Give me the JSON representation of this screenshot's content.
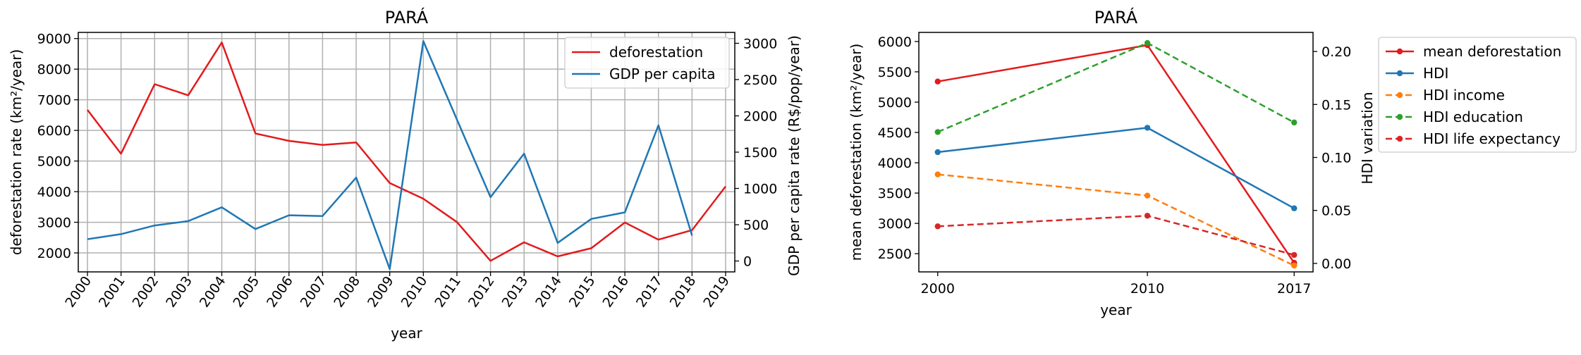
{
  "chart_data": [
    {
      "type": "line",
      "title": "PARÁ",
      "xlabel": "year",
      "ylabel": "deforestation rate (km²/year)",
      "y2label": "GDP per capita rate (R$/pop/year)",
      "x": [
        "2000",
        "2001",
        "2002",
        "2003",
        "2004",
        "2005",
        "2006",
        "2007",
        "2008",
        "2009",
        "2010",
        "2011",
        "2012",
        "2013",
        "2014",
        "2015",
        "2016",
        "2017",
        "2018",
        "2019"
      ],
      "ylim": [
        1380,
        9200
      ],
      "yticks": [
        2000,
        3000,
        4000,
        5000,
        6000,
        7000,
        8000,
        9000
      ],
      "y2lim": [
        -150,
        3150
      ],
      "y2ticks": [
        0,
        500,
        1000,
        1500,
        2000,
        2500,
        3000
      ],
      "grid": true,
      "legend_position": "top-right",
      "series": [
        {
          "name": "deforestation",
          "axis": "left",
          "color": "#e31a1c",
          "values": [
            6671,
            5237,
            7510,
            7145,
            8870,
            5899,
            5659,
            5526,
            5607,
            4281,
            3770,
            3008,
            1741,
            2346,
            1887,
            2153,
            2992,
            2433,
            2744,
            4172
          ]
        },
        {
          "name": "GDP per capita",
          "axis": "right",
          "color": "#1f77b4",
          "values": [
            300,
            370,
            490,
            550,
            740,
            440,
            630,
            620,
            1150,
            -110,
            3030,
            1950,
            880,
            1480,
            250,
            580,
            670,
            1870,
            350,
            null
          ]
        }
      ]
    },
    {
      "type": "line",
      "title": "PARÁ",
      "xlabel": "year",
      "ylabel": "mean deforestation (km²/year)",
      "y2label": "HDI variation",
      "x": [
        2000,
        2010,
        2017
      ],
      "xticks": [
        "2000",
        "2010",
        "2017"
      ],
      "ylim": [
        2200,
        6150
      ],
      "yticks": [
        2500,
        3000,
        3500,
        4000,
        4500,
        5000,
        5500,
        6000
      ],
      "y2lim": [
        -0.008,
        0.218
      ],
      "y2ticks": [
        "0.00",
        "0.05",
        "0.10",
        "0.15",
        "0.20"
      ],
      "grid": false,
      "legend_position": "outside right",
      "series": [
        {
          "name": "mean deforestation",
          "axis": "left",
          "style": "solid",
          "color": "#e31a1c",
          "values": [
            5340,
            5940,
            2350
          ]
        },
        {
          "name": "HDI",
          "axis": "right",
          "style": "solid",
          "color": "#1f77b4",
          "values": [
            0.105,
            0.128,
            0.052
          ]
        },
        {
          "name": "HDI income",
          "axis": "right",
          "style": "dashed",
          "color": "#ff7f0e",
          "values": [
            0.084,
            0.064,
            -0.002
          ]
        },
        {
          "name": "HDI education",
          "axis": "right",
          "style": "dashed",
          "color": "#2ca02c",
          "values": [
            0.124,
            0.208,
            0.133
          ]
        },
        {
          "name": "HDI life expectancy",
          "axis": "right",
          "style": "dashed",
          "color": "#d62728",
          "values": [
            0.035,
            0.045,
            0.008
          ]
        }
      ]
    }
  ]
}
